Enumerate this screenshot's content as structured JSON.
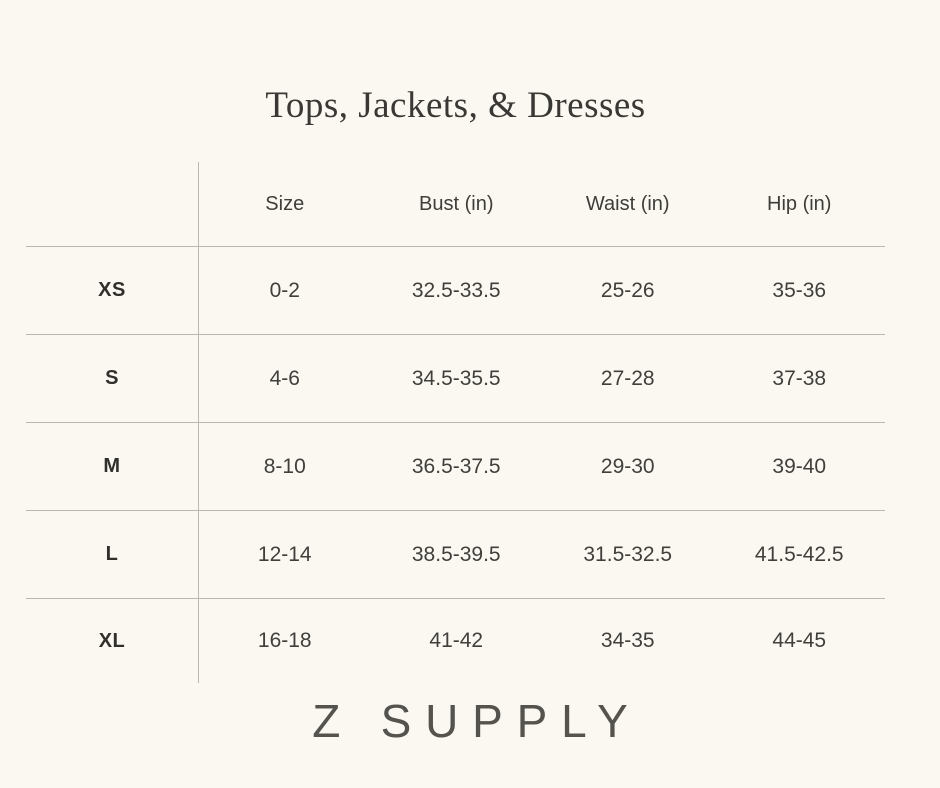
{
  "chart_data": {
    "type": "table",
    "title": "Tops, Jackets, & Dresses",
    "columns": [
      "Size",
      "Bust (in)",
      "Waist (in)",
      "Hip (in)"
    ],
    "rows": [
      {
        "label": "XS",
        "values": [
          "0-2",
          "32.5-33.5",
          "25-26",
          "35-36"
        ]
      },
      {
        "label": "S",
        "values": [
          "4-6",
          "34.5-35.5",
          "27-28",
          "37-38"
        ]
      },
      {
        "label": "M",
        "values": [
          "8-10",
          "36.5-37.5",
          "29-30",
          "39-40"
        ]
      },
      {
        "label": "L",
        "values": [
          "12-14",
          "38.5-39.5",
          "31.5-32.5",
          "41.5-42.5"
        ]
      },
      {
        "label": "XL",
        "values": [
          "16-18",
          "41-42",
          "34-35",
          "44-45"
        ]
      }
    ],
    "layout": {
      "grid": "horizontal rules between rows, vertical rule after label column, no outer border",
      "legend": "none"
    }
  },
  "brand": {
    "wordmark": "Z SUPPLY"
  },
  "colors": {
    "background": "#faf8f1",
    "rule_line": "#bab7b1",
    "title_text": "#3a3834",
    "table_text": "#403f3b",
    "label_text": "#302f2b",
    "logo_text": "#55534d"
  }
}
